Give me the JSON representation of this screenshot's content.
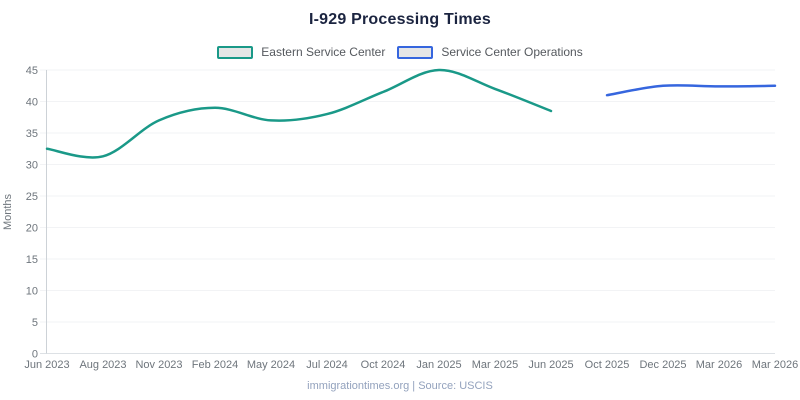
{
  "title": "I-929 Processing Times",
  "legend": {
    "items": [
      {
        "label": "Eastern Service Center",
        "color": "#1A9988"
      },
      {
        "label": "Service Center Operations",
        "color": "#3666DE"
      }
    ],
    "swatch_fill": "#E6E6E6"
  },
  "footer": "immigrationtimes.org | Source: USCIS",
  "colors": {
    "title": "#1B2440",
    "axis_text": "#6E757C",
    "grid_line": "#F2F3F5",
    "x_axis_line": "#DDE1E5",
    "y_axis_line": "#CDD2D7",
    "footer_text": "#93A2BD",
    "eastern_line": "#1A9988",
    "operations_line": "#3666DE"
  },
  "chart_data": {
    "type": "line",
    "title": "I-929 Processing Times",
    "xlabel": "",
    "ylabel": "Months",
    "ylim": [
      0,
      45
    ],
    "ytick_step": 5,
    "grid": "horizontal",
    "legend_position": "top-center",
    "line_style": "smooth",
    "categories": [
      "Jun 2023",
      "Aug 2023",
      "Nov 2023",
      "Feb 2024",
      "May 2024",
      "Jul 2024",
      "Oct 2024",
      "Jan 2025",
      "Mar 2025",
      "Jun 2025",
      "Oct 2025",
      "Dec 2025",
      "Mar 2026",
      "Mar 2026"
    ],
    "series": [
      {
        "name": "Eastern Service Center",
        "color": "#1A9988",
        "values": [
          32.5,
          31.3,
          37,
          39,
          37,
          38,
          41.5,
          45,
          42,
          38.5,
          null,
          null,
          null,
          null
        ]
      },
      {
        "name": "Service Center Operations",
        "color": "#3666DE",
        "values": [
          null,
          null,
          null,
          null,
          null,
          null,
          null,
          null,
          null,
          null,
          41,
          42.5,
          42.4,
          42.5
        ]
      }
    ]
  }
}
